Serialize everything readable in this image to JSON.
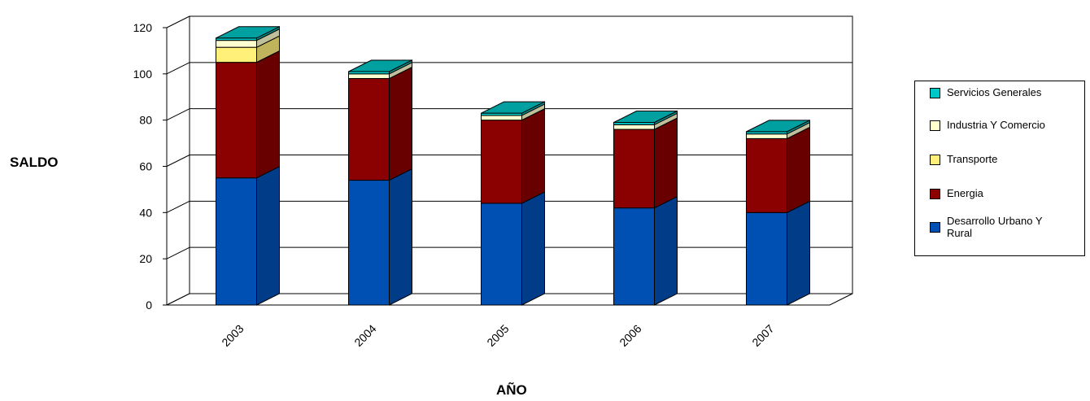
{
  "chart_data": {
    "type": "bar",
    "stacked": true,
    "three_d": true,
    "categories": [
      "2003",
      "2004",
      "2005",
      "2006",
      "2007"
    ],
    "series": [
      {
        "name": "Desarrollo Urbano Y Rural",
        "values": [
          55,
          54,
          44,
          42,
          40
        ],
        "color": "#0050b4"
      },
      {
        "name": "Energia",
        "values": [
          50,
          44,
          36,
          34,
          32
        ],
        "color": "#8b0000"
      },
      {
        "name": "Transporte",
        "values": [
          6.5,
          0,
          0,
          0,
          0
        ],
        "color": "#fff07a"
      },
      {
        "name": "Industria Y Comercio",
        "values": [
          3,
          2,
          2,
          2,
          2
        ],
        "color": "#ffffd0"
      },
      {
        "name": "Servicios Generales",
        "values": [
          1,
          1,
          1,
          1,
          1
        ],
        "color": "#00c8c8"
      }
    ],
    "xlabel": "AÑO",
    "ylabel": "SALDO",
    "ylim": [
      0,
      120
    ],
    "yticks": [
      "0",
      "20",
      "40",
      "60",
      "80",
      "100",
      "120"
    ],
    "grid": true,
    "legend_position": "right"
  }
}
